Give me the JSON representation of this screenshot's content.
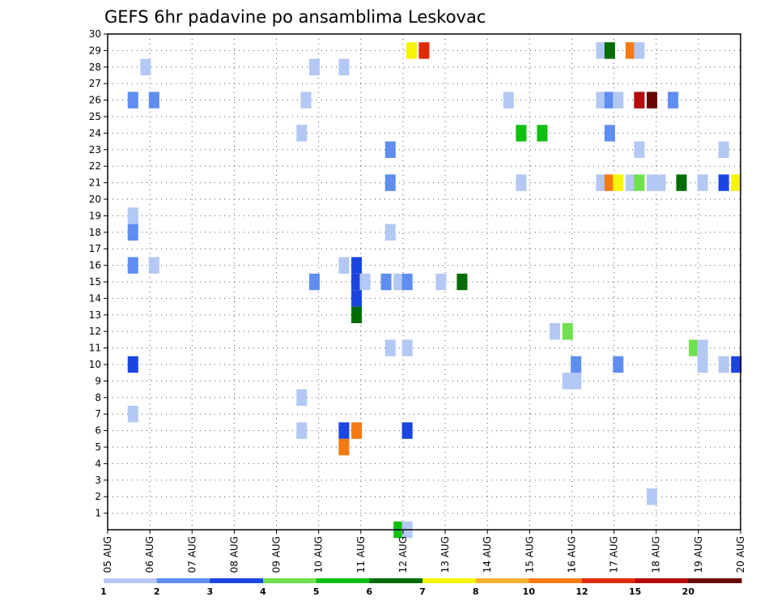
{
  "chart_data": {
    "type": "heatmap",
    "title": "GEFS 6hr padavine po ansamblima Leskovac",
    "xlabel": "",
    "ylabel": "",
    "x_ticks": [
      "05 AUG",
      "06 AUG",
      "07 AUG",
      "08 AUG",
      "09 AUG",
      "10 AUG",
      "11 AUG",
      "12 AUG",
      "13 AUG",
      "14 AUG",
      "15 AUG",
      "16 AUG",
      "17 AUG",
      "18 AUG",
      "19 AUG",
      "20 AUG"
    ],
    "y_ticks": [
      "1",
      "2",
      "3",
      "4",
      "5",
      "6",
      "7",
      "8",
      "9",
      "10",
      "11",
      "12",
      "13",
      "14",
      "15",
      "16",
      "17",
      "18",
      "19",
      "20",
      "21",
      "22",
      "23",
      "24",
      "25",
      "26",
      "27",
      "28",
      "29",
      "30"
    ],
    "xlim_days": [
      5,
      20
    ],
    "ylim": [
      0,
      30
    ],
    "grid": true,
    "legend_placement": "bottom",
    "colorbar": {
      "colors": [
        "#b4c8f5",
        "#5f8ef0",
        "#1a45e0",
        "#70e04c",
        "#10c010",
        "#046c04",
        "#f5f500",
        "#f5b030",
        "#f57a14",
        "#e02a0a",
        "#b40a0a",
        "#6a0606"
      ],
      "labels": [
        "1",
        "2",
        "3",
        "4",
        "5",
        "6",
        "7",
        "8",
        "10",
        "12",
        "15",
        "20"
      ]
    },
    "cells": [
      [
        12.2,
        29,
        6
      ],
      [
        12.5,
        29,
        9
      ],
      [
        16.7,
        29,
        0
      ],
      [
        16.9,
        29,
        5
      ],
      [
        17.4,
        29,
        8
      ],
      [
        17.6,
        29,
        0
      ],
      [
        5.9,
        28,
        0
      ],
      [
        9.9,
        28,
        0
      ],
      [
        10.6,
        28,
        0
      ],
      [
        5.6,
        26,
        1
      ],
      [
        6.1,
        26,
        1
      ],
      [
        9.7,
        26,
        0
      ],
      [
        14.5,
        26,
        0
      ],
      [
        16.7,
        26,
        0
      ],
      [
        16.9,
        26,
        1
      ],
      [
        17.1,
        26,
        0
      ],
      [
        17.6,
        26,
        10
      ],
      [
        17.9,
        26,
        11
      ],
      [
        18.4,
        26,
        1
      ],
      [
        9.6,
        24,
        0
      ],
      [
        14.8,
        24,
        4
      ],
      [
        15.3,
        24,
        4
      ],
      [
        16.9,
        24,
        1
      ],
      [
        11.7,
        23,
        1
      ],
      [
        17.6,
        23,
        0
      ],
      [
        19.6,
        23,
        0
      ],
      [
        11.7,
        21,
        1
      ],
      [
        14.8,
        21,
        0
      ],
      [
        16.7,
        21,
        0
      ],
      [
        16.9,
        21,
        8
      ],
      [
        17.1,
        21,
        6
      ],
      [
        17.4,
        21,
        0
      ],
      [
        17.6,
        21,
        3
      ],
      [
        17.9,
        21,
        0
      ],
      [
        18.1,
        21,
        0
      ],
      [
        18.6,
        21,
        5
      ],
      [
        19.1,
        21,
        0
      ],
      [
        19.6,
        21,
        2
      ],
      [
        19.9,
        21,
        6
      ],
      [
        5.6,
        19,
        0
      ],
      [
        5.6,
        18,
        1
      ],
      [
        11.7,
        18,
        0
      ],
      [
        5.6,
        16,
        1
      ],
      [
        6.1,
        16,
        0
      ],
      [
        10.6,
        16,
        0
      ],
      [
        10.9,
        16,
        2
      ],
      [
        9.9,
        15,
        1
      ],
      [
        10.9,
        15,
        2
      ],
      [
        11.1,
        15,
        0
      ],
      [
        11.6,
        15,
        1
      ],
      [
        11.9,
        15,
        0
      ],
      [
        12.1,
        15,
        1
      ],
      [
        12.9,
        15,
        0
      ],
      [
        13.4,
        15,
        5
      ],
      [
        10.9,
        14,
        2
      ],
      [
        10.9,
        13,
        5
      ],
      [
        15.6,
        12,
        0
      ],
      [
        15.9,
        12,
        3
      ],
      [
        11.7,
        11,
        0
      ],
      [
        12.1,
        11,
        0
      ],
      [
        18.9,
        11,
        3
      ],
      [
        19.1,
        11,
        0
      ],
      [
        5.6,
        10,
        2
      ],
      [
        16.1,
        10,
        1
      ],
      [
        17.1,
        10,
        1
      ],
      [
        19.1,
        10,
        0
      ],
      [
        19.6,
        10,
        0
      ],
      [
        19.9,
        10,
        2
      ],
      [
        15.9,
        9,
        0
      ],
      [
        16.1,
        9,
        0
      ],
      [
        9.6,
        8,
        0
      ],
      [
        5.6,
        7,
        0
      ],
      [
        9.6,
        6,
        0
      ],
      [
        10.6,
        6,
        2
      ],
      [
        10.9,
        6,
        8
      ],
      [
        12.1,
        6,
        2
      ],
      [
        10.6,
        5,
        8
      ],
      [
        17.9,
        2,
        0
      ],
      [
        11.9,
        0,
        4
      ],
      [
        12.1,
        0,
        0
      ]
    ]
  }
}
